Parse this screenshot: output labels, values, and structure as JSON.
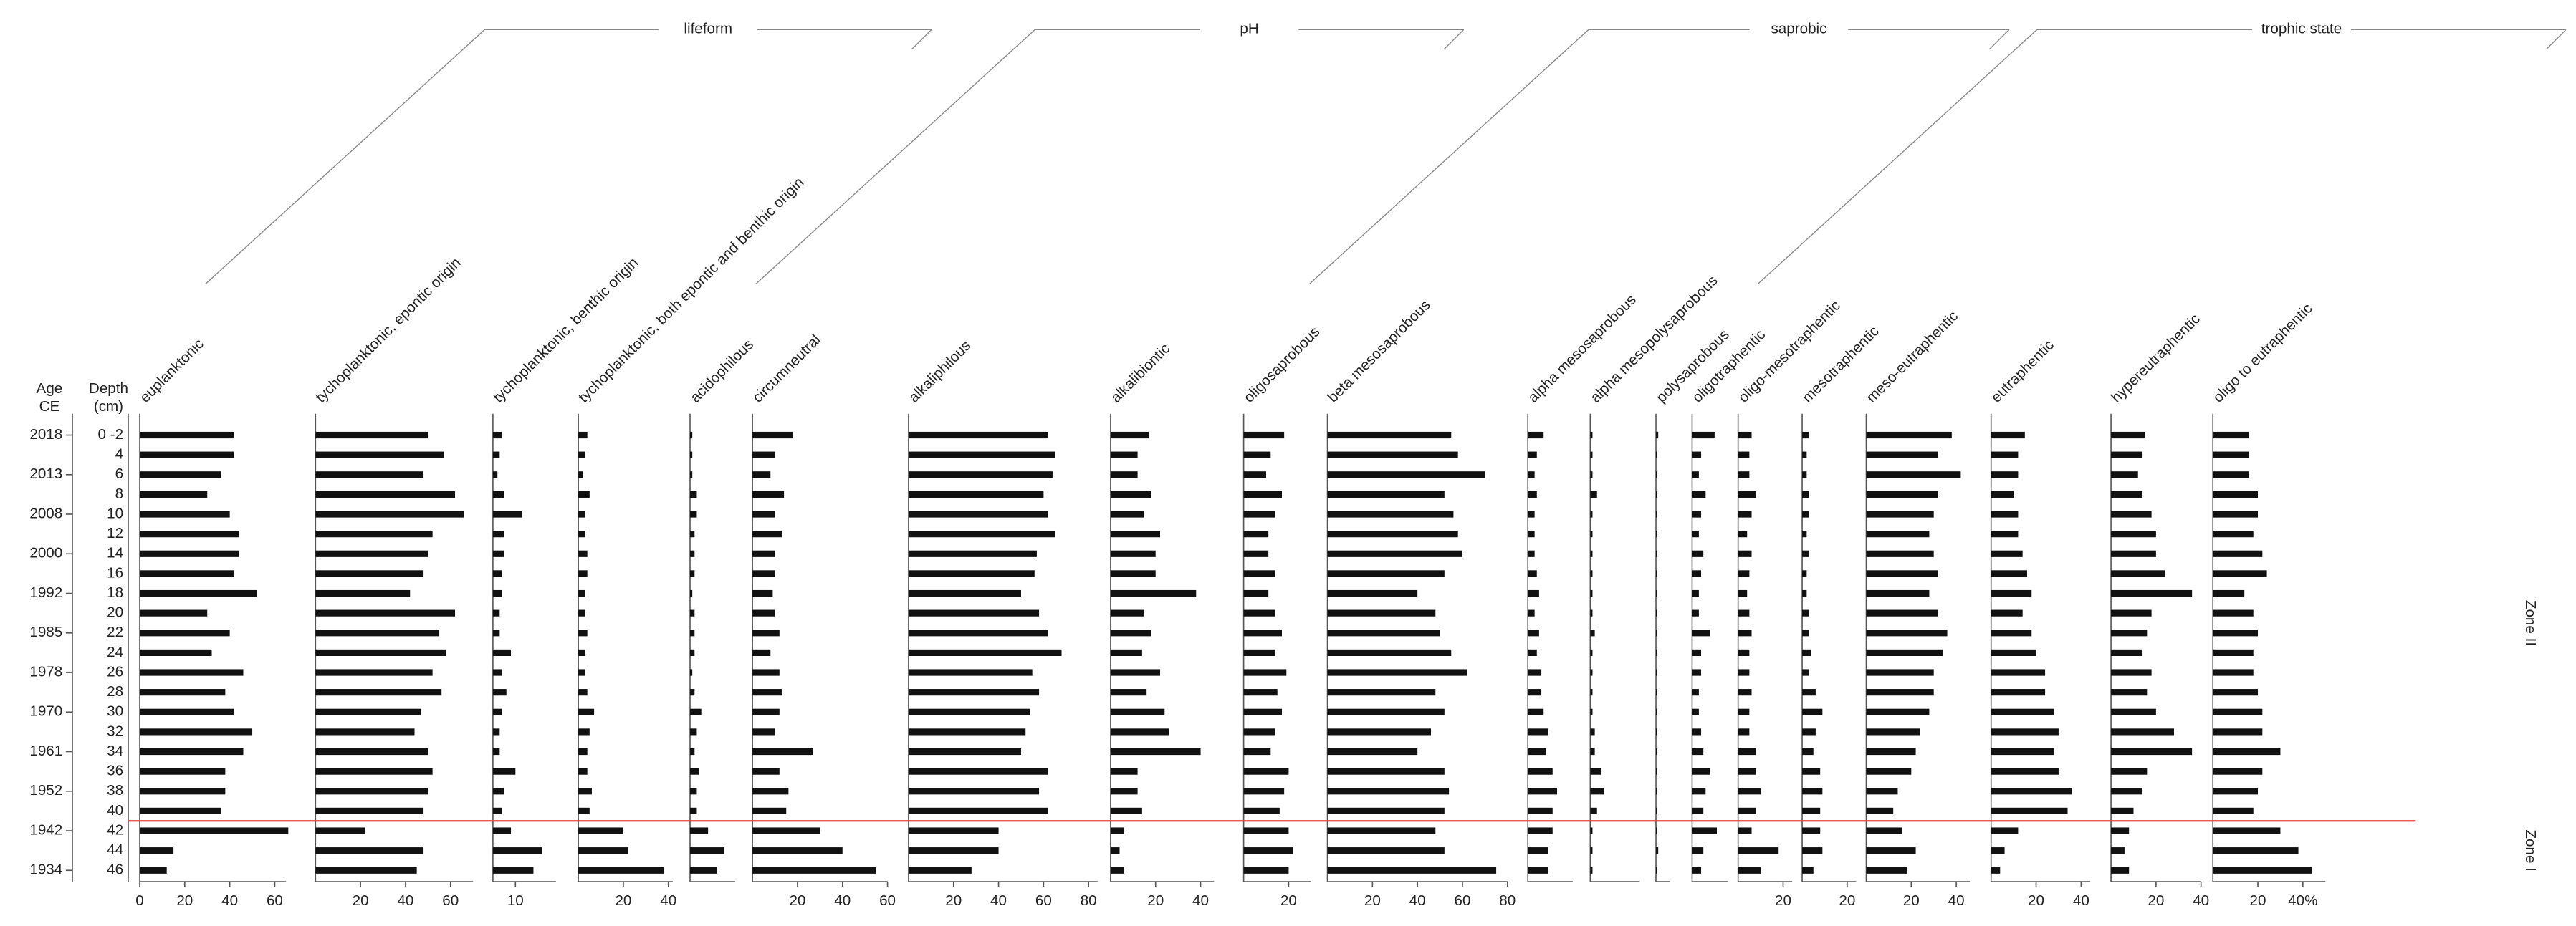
{
  "chart_data": {
    "type": "stratigraphic-bar",
    "color": "#111111",
    "zone_color": "#e8403a",
    "age_header": [
      "Age",
      "CE"
    ],
    "depth_header": [
      "Depth",
      "(cm)"
    ],
    "depths": [
      "0 -2",
      "4",
      "6",
      "8",
      "10",
      "12",
      "14",
      "16",
      "18",
      "20",
      "22",
      "24",
      "26",
      "28",
      "30",
      "32",
      "34",
      "36",
      "38",
      "40",
      "42",
      "44",
      "46"
    ],
    "ages": [
      "2018",
      null,
      "2013",
      null,
      "2008",
      null,
      "2000",
      null,
      "1992",
      null,
      "1985",
      null,
      "1978",
      null,
      "1970",
      null,
      "1961",
      null,
      "1952",
      null,
      "1942",
      null,
      "1934"
    ],
    "groups": [
      {
        "label": "lifeform",
        "panels": [
          0,
          3
        ]
      },
      {
        "label": "pH",
        "panels": [
          4,
          7
        ]
      },
      {
        "label": "saprobic",
        "panels": [
          8,
          12
        ]
      },
      {
        "label": "trophic state",
        "panels": [
          13,
          19
        ]
      }
    ],
    "zones": [
      {
        "label": "Zone II",
        "rows": [
          0,
          19
        ]
      },
      {
        "label": "Zone I",
        "rows": [
          20,
          22
        ]
      }
    ],
    "panels": [
      {
        "name": "euplanktonic",
        "xlim": [
          0,
          65
        ],
        "xticks": [
          0,
          20,
          40,
          60
        ],
        "values": [
          42,
          42,
          36,
          30,
          40,
          44,
          44,
          42,
          52,
          30,
          40,
          32,
          46,
          38,
          42,
          50,
          46,
          38,
          38,
          36,
          66,
          15,
          12
        ]
      },
      {
        "name": "tychoplanktonic, epontic origin",
        "xlim": [
          0,
          70
        ],
        "xticks": [
          20,
          40,
          60
        ],
        "values": [
          50,
          57,
          48,
          62,
          66,
          52,
          50,
          48,
          42,
          62,
          55,
          58,
          52,
          56,
          47,
          44,
          50,
          52,
          50,
          48,
          22,
          48,
          45
        ]
      },
      {
        "name": "tychoplanktonic, benthic origin",
        "xlim": [
          0,
          28
        ],
        "xticks": [
          10
        ],
        "values": [
          4,
          3,
          2,
          5,
          13,
          5,
          5,
          4,
          4,
          3,
          3,
          8,
          4,
          6,
          4,
          3,
          3,
          10,
          5,
          4,
          8,
          22,
          18
        ]
      },
      {
        "name": "tychoplanktonic, both epontic and benthic origin",
        "xlim": [
          0,
          42
        ],
        "xticks": [
          20,
          40
        ],
        "values": [
          4,
          3,
          2,
          5,
          3,
          3,
          4,
          4,
          3,
          3,
          4,
          3,
          3,
          4,
          7,
          5,
          4,
          4,
          6,
          5,
          20,
          22,
          38
        ]
      },
      {
        "name": "acidophilous",
        "xlim": [
          0,
          20
        ],
        "xticks": [],
        "values": [
          1,
          1,
          1,
          3,
          3,
          2,
          2,
          2,
          1,
          2,
          2,
          2,
          1,
          2,
          5,
          3,
          2,
          4,
          3,
          3,
          8,
          15,
          12
        ]
      },
      {
        "name": "circumneutral",
        "xlim": [
          0,
          60
        ],
        "xticks": [
          20,
          40,
          60
        ],
        "values": [
          18,
          10,
          8,
          14,
          10,
          13,
          10,
          10,
          9,
          10,
          12,
          8,
          12,
          13,
          12,
          10,
          27,
          12,
          16,
          15,
          30,
          40,
          55
        ]
      },
      {
        "name": "alkaliphilous",
        "xlim": [
          0,
          84
        ],
        "xticks": [
          20,
          40,
          60,
          80
        ],
        "values": [
          62,
          65,
          64,
          60,
          62,
          65,
          57,
          56,
          50,
          58,
          62,
          68,
          55,
          58,
          54,
          52,
          50,
          62,
          58,
          62,
          40,
          40,
          28
        ]
      },
      {
        "name": "alkalibiontic",
        "xlim": [
          0,
          46
        ],
        "xticks": [
          20,
          40
        ],
        "values": [
          17,
          12,
          12,
          18,
          15,
          22,
          20,
          20,
          38,
          15,
          18,
          14,
          22,
          16,
          24,
          26,
          40,
          12,
          12,
          14,
          6,
          4,
          6
        ]
      },
      {
        "name": "oligosaprobous",
        "xlim": [
          0,
          30
        ],
        "xticks": [
          20
        ],
        "values": [
          18,
          12,
          10,
          17,
          14,
          11,
          11,
          14,
          11,
          14,
          17,
          14,
          19,
          15,
          17,
          14,
          12,
          20,
          18,
          16,
          20,
          22,
          20
        ]
      },
      {
        "name": "beta mesosaprobous",
        "xlim": [
          0,
          80
        ],
        "xticks": [
          20,
          40,
          60,
          80
        ],
        "values": [
          55,
          58,
          70,
          52,
          56,
          58,
          60,
          52,
          40,
          48,
          50,
          55,
          62,
          48,
          52,
          46,
          40,
          52,
          54,
          52,
          48,
          52,
          75
        ]
      },
      {
        "name": "alpha mesosaprobous",
        "xlim": [
          0,
          20
        ],
        "xticks": [],
        "values": [
          7,
          4,
          3,
          4,
          3,
          3,
          3,
          4,
          5,
          3,
          5,
          4,
          6,
          6,
          7,
          9,
          8,
          11,
          13,
          11,
          11,
          9,
          9
        ]
      },
      {
        "name": "alpha mesopolysaprobous",
        "xlim": [
          0,
          22
        ],
        "xticks": [],
        "values": [
          1,
          1,
          1,
          3,
          1,
          1,
          1,
          1,
          1,
          1,
          2,
          1,
          1,
          1,
          1,
          2,
          2,
          5,
          6,
          3,
          1,
          1,
          1
        ]
      },
      {
        "name": "polysaprobous",
        "xlim": [
          0,
          6
        ],
        "xticks": [],
        "values": [
          1,
          0.5,
          0.5,
          0.5,
          0.5,
          0.5,
          0.5,
          0.5,
          0.5,
          0.5,
          0.5,
          0.5,
          0.5,
          0.5,
          0.5,
          0.5,
          0.5,
          0.5,
          0.5,
          0.5,
          0.5,
          1,
          0.5
        ]
      },
      {
        "name": "oligotraphentic",
        "xlim": [
          0,
          16
        ],
        "xticks": [],
        "values": [
          10,
          4,
          3,
          6,
          4,
          3,
          5,
          4,
          3,
          3,
          8,
          4,
          4,
          3,
          3,
          4,
          5,
          8,
          6,
          5,
          11,
          5,
          4
        ]
      },
      {
        "name": "oligo-mesotraphentic",
        "xlim": [
          0,
          24
        ],
        "xticks": [
          20
        ],
        "values": [
          6,
          5,
          5,
          8,
          6,
          4,
          6,
          5,
          4,
          5,
          6,
          5,
          5,
          6,
          5,
          5,
          8,
          8,
          10,
          8,
          6,
          18,
          10
        ]
      },
      {
        "name": "mesotraphentic",
        "xlim": [
          0,
          24
        ],
        "xticks": [
          20
        ],
        "values": [
          3,
          2,
          2,
          3,
          3,
          2,
          3,
          2,
          2,
          3,
          3,
          4,
          3,
          6,
          9,
          6,
          5,
          8,
          9,
          8,
          8,
          9,
          5
        ]
      },
      {
        "name": "meso-eutraphentic",
        "xlim": [
          0,
          46
        ],
        "xticks": [
          20,
          40
        ],
        "values": [
          38,
          32,
          42,
          32,
          30,
          28,
          30,
          32,
          28,
          32,
          36,
          34,
          30,
          30,
          28,
          24,
          22,
          20,
          14,
          12,
          16,
          22,
          18
        ]
      },
      {
        "name": "eutraphentic",
        "xlim": [
          0,
          44
        ],
        "xticks": [
          20,
          40
        ],
        "values": [
          15,
          12,
          12,
          10,
          12,
          12,
          14,
          16,
          18,
          14,
          18,
          20,
          24,
          24,
          28,
          30,
          28,
          30,
          36,
          34,
          12,
          6,
          4
        ]
      },
      {
        "name": "hypereutraphentic",
        "xlim": [
          0,
          40
        ],
        "xticks": [
          20,
          40
        ],
        "values": [
          15,
          14,
          12,
          14,
          18,
          20,
          20,
          24,
          36,
          18,
          16,
          14,
          18,
          16,
          20,
          28,
          36,
          16,
          14,
          10,
          8,
          6,
          8
        ]
      },
      {
        "name": "oligo to eutraphentic",
        "xlim": [
          0,
          50
        ],
        "xticks": [
          20,
          {
            "value": 40,
            "label": "40%"
          }
        ],
        "values": [
          16,
          16,
          16,
          20,
          20,
          18,
          22,
          24,
          14,
          18,
          20,
          18,
          18,
          20,
          22,
          22,
          30,
          22,
          20,
          18,
          30,
          38,
          44
        ]
      }
    ]
  }
}
